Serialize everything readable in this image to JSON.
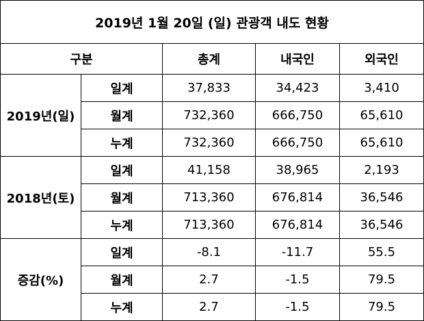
{
  "title": "2019년 1월 20일 (일) 관광객 내도 현황",
  "header": [
    "구분",
    "총계",
    "내국인",
    "외국인"
  ],
  "groups": [
    {
      "label": "2019년(일)",
      "rows": [
        {
          "label": "일계",
          "values": [
            "37,833",
            "34,423",
            "3,410"
          ]
        },
        {
          "label": "월계",
          "values": [
            "732,360",
            "666,750",
            "65,610"
          ]
        },
        {
          "label": "누계",
          "values": [
            "732,360",
            "666,750",
            "65,610"
          ]
        }
      ]
    },
    {
      "label": "2018년(토)",
      "rows": [
        {
          "label": "일계",
          "values": [
            "41,158",
            "38,965",
            "2,193"
          ]
        },
        {
          "label": "월계",
          "values": [
            "713,360",
            "676,814",
            "36,546"
          ]
        },
        {
          "label": "누계",
          "values": [
            "713,360",
            "676,814",
            "36,546"
          ]
        }
      ]
    },
    {
      "label": "증감(%)",
      "rows": [
        {
          "label": "일계",
          "values": [
            "-8.1",
            "-11.7",
            "55.5"
          ]
        },
        {
          "label": "월계",
          "values": [
            "2.7",
            "-1.5",
            "79.5"
          ]
        },
        {
          "label": "누계",
          "values": [
            "2.7",
            "-1.5",
            "79.5"
          ]
        }
      ]
    }
  ]
}
